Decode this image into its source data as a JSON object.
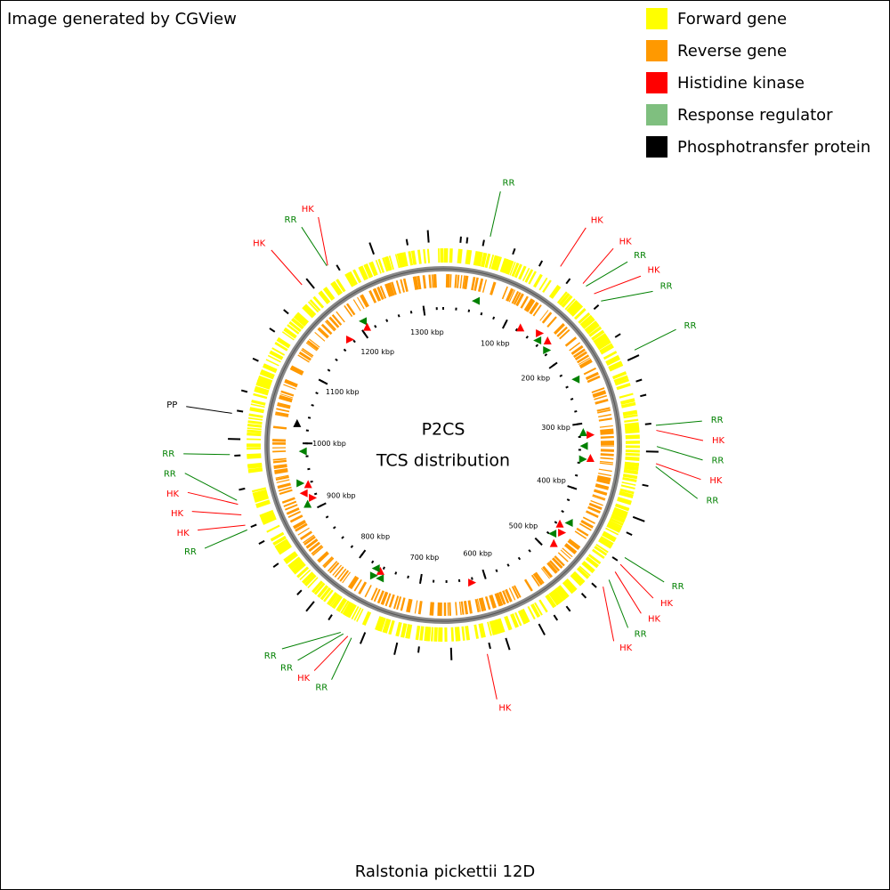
{
  "credit": "Image generated by CGView",
  "legend": [
    {
      "label": "Forward gene",
      "color": "#ffff00"
    },
    {
      "label": "Reverse gene",
      "color": "#ff9900"
    },
    {
      "label": "Histidine kinase",
      "color": "#ff0000"
    },
    {
      "label": "Response regulator",
      "color": "#7fbf7f"
    },
    {
      "label": "Phosphotransfer protein",
      "color": "#000000"
    }
  ],
  "center": {
    "title": "P2CS",
    "subtitle": "TCS distribution"
  },
  "caption": "Ralstonia pickettii 12D",
  "map": {
    "length_kbp": 1330,
    "ticks": [
      {
        "value": 100,
        "label": "100 kbp"
      },
      {
        "value": 200,
        "label": "200 kbp"
      },
      {
        "value": 300,
        "label": "300 kbp"
      },
      {
        "value": 400,
        "label": "400 kbp"
      },
      {
        "value": 500,
        "label": "500 kbp"
      },
      {
        "value": 600,
        "label": "600 kbp"
      },
      {
        "value": 700,
        "label": "700 kbp"
      },
      {
        "value": 800,
        "label": "800 kbp"
      },
      {
        "value": 900,
        "label": "900 kbp"
      },
      {
        "value": 1000,
        "label": "1000 kbp"
      },
      {
        "value": 1100,
        "label": "1100 kbp"
      },
      {
        "value": 1200,
        "label": "1200 kbp"
      },
      {
        "value": 1300,
        "label": "1300 kbp"
      }
    ],
    "features": [
      {
        "label": "RR",
        "position_kbp": 47,
        "color": "#008000"
      },
      {
        "label": "HK",
        "position_kbp": 123,
        "color": "#ff0000"
      },
      {
        "label": "HK",
        "position_kbp": 151,
        "color": "#ff0000"
      },
      {
        "label": "RR",
        "position_kbp": 155,
        "color": "#008000"
      },
      {
        "label": "HK",
        "position_kbp": 166,
        "color": "#ff0000"
      },
      {
        "label": "RR",
        "position_kbp": 176,
        "color": "#008000"
      },
      {
        "label": "RR",
        "position_kbp": 235,
        "color": "#008000"
      },
      {
        "label": "RR",
        "position_kbp": 313,
        "color": "#008000"
      },
      {
        "label": "HK",
        "position_kbp": 318,
        "color": "#ff0000"
      },
      {
        "label": "RR",
        "position_kbp": 334,
        "color": "#008000"
      },
      {
        "label": "HK",
        "position_kbp": 351,
        "color": "#ff0000"
      },
      {
        "label": "RR",
        "position_kbp": 354,
        "color": "#008000"
      },
      {
        "label": "RR",
        "position_kbp": 450,
        "color": "#008000"
      },
      {
        "label": "HK",
        "position_kbp": 458,
        "color": "#ff0000"
      },
      {
        "label": "HK",
        "position_kbp": 467,
        "color": "#ff0000"
      },
      {
        "label": "RR",
        "position_kbp": 477,
        "color": "#008000"
      },
      {
        "label": "HK",
        "position_kbp": 486,
        "color": "#ff0000"
      },
      {
        "label": "HK",
        "position_kbp": 621,
        "color": "#ff0000"
      },
      {
        "label": "RR",
        "position_kbp": 759,
        "color": "#008000"
      },
      {
        "label": "HK",
        "position_kbp": 763,
        "color": "#ff0000"
      },
      {
        "label": "RR",
        "position_kbp": 768,
        "color": "#008000"
      },
      {
        "label": "RR",
        "position_kbp": 771,
        "color": "#008000"
      },
      {
        "label": "RR",
        "position_kbp": 911,
        "color": "#008000"
      },
      {
        "label": "HK",
        "position_kbp": 916,
        "color": "#ff0000"
      },
      {
        "label": "HK",
        "position_kbp": 927,
        "color": "#ff0000"
      },
      {
        "label": "HK",
        "position_kbp": 938,
        "color": "#ff0000"
      },
      {
        "label": "RR",
        "position_kbp": 942,
        "color": "#008000"
      },
      {
        "label": "RR",
        "position_kbp": 988,
        "color": "#008000"
      },
      {
        "label": "PP",
        "position_kbp": 1029,
        "color": "#000000"
      },
      {
        "label": "HK",
        "position_kbp": 1177,
        "color": "#ff0000"
      },
      {
        "label": "RR",
        "position_kbp": 1208,
        "color": "#008000"
      },
      {
        "label": "HK",
        "position_kbp": 1209,
        "color": "#ff0000"
      }
    ]
  }
}
